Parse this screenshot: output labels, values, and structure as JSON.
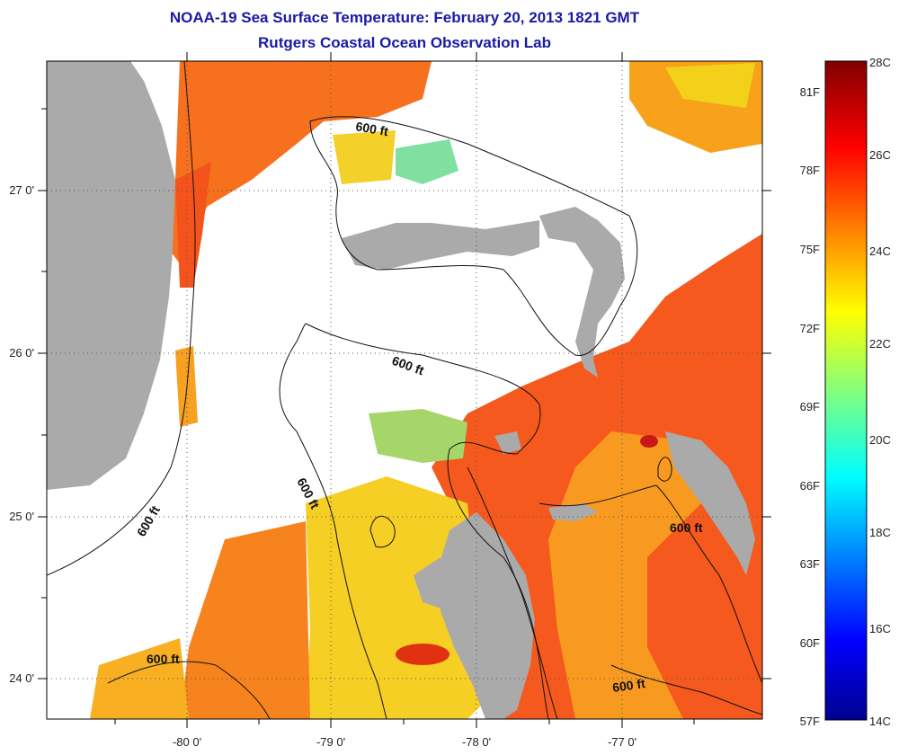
{
  "header": {
    "title_line1": "NOAA-19 Sea Surface Temperature:  February 20, 2013 1821 GMT",
    "title_line2": "Rutgers Coastal Ocean Observation Lab"
  },
  "map": {
    "lon_ticks": [
      "-80 0'",
      "-79 0'",
      "-78 0'",
      "-77 0'"
    ],
    "lat_ticks": [
      "27 0'",
      "26 0'",
      "25 0'",
      "24 0'"
    ],
    "contour_label": "600 ft",
    "colors": {
      "land": "#aaaaaa",
      "cloud": "#ffffff",
      "sst_warm": "#f4581e",
      "sst_orange": "#f8901e",
      "sst_yellow": "#f6d21c",
      "sst_cool": "#72e69a",
      "sst_cold": "#2fd1d6"
    }
  },
  "colorbar": {
    "fahrenheit_labels": [
      "81F",
      "78F",
      "75F",
      "72F",
      "69F",
      "66F",
      "63F",
      "60F",
      "57F"
    ],
    "celsius_labels": [
      "28C",
      "26C",
      "24C",
      "22C",
      "20C",
      "18C",
      "16C",
      "14C"
    ]
  }
}
